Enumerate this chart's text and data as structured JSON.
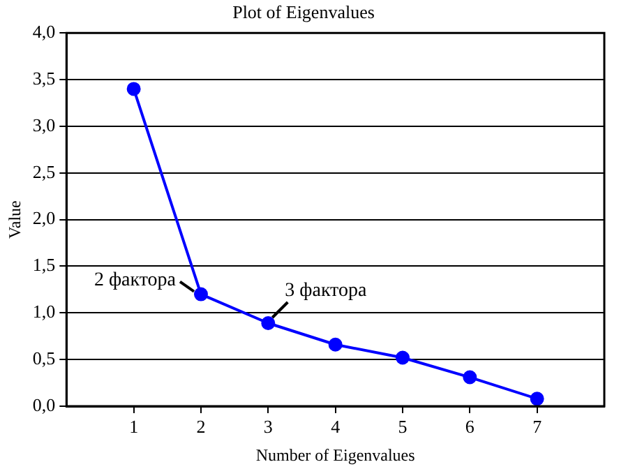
{
  "chart_data": {
    "type": "line",
    "title": "Plot of Eigenvalues",
    "xlabel": "Number of Eigenvalues",
    "ylabel": "Value",
    "x": [
      1,
      2,
      3,
      4,
      5,
      6,
      7
    ],
    "series": [
      {
        "color": "#0000ff",
        "values": [
          3.4,
          1.2,
          0.89,
          0.66,
          0.52,
          0.31,
          0.08
        ]
      }
    ],
    "xlim": [
      0,
      8
    ],
    "xticks": [
      1,
      2,
      3,
      4,
      5,
      6,
      7
    ],
    "ylim": [
      0,
      4
    ],
    "yticks": [
      {
        "value": 0,
        "label": "0,0"
      },
      {
        "value": 0.5,
        "label": "0,5"
      },
      {
        "value": 1,
        "label": "1,0"
      },
      {
        "value": 1.5,
        "label": "1,5"
      },
      {
        "value": 2,
        "label": "2,0"
      },
      {
        "value": 2.5,
        "label": "2,5"
      },
      {
        "value": 3,
        "label": "3,0"
      },
      {
        "value": 3.5,
        "label": "3,5"
      },
      {
        "value": 4,
        "label": "4,0"
      }
    ],
    "annotations": [
      {
        "text": "2 фактора",
        "x": 2,
        "y": 1.2
      },
      {
        "text": "3 фактора",
        "x": 3,
        "y": 0.89
      }
    ],
    "grid": "y",
    "legend": false,
    "marker": "circle",
    "line_style": "solid"
  }
}
